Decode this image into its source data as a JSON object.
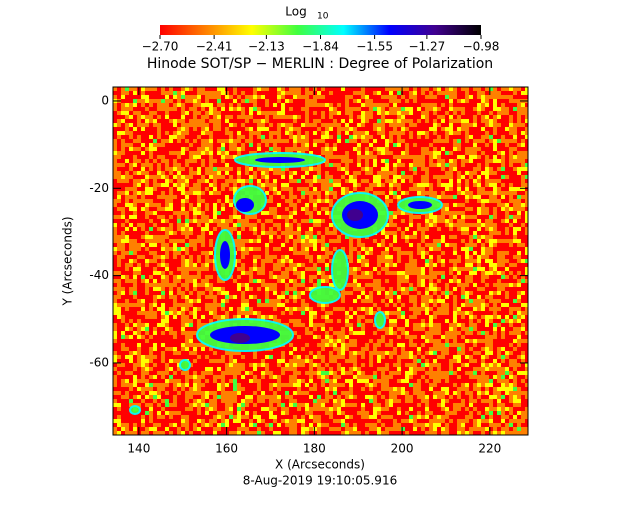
{
  "chart_data": {
    "type": "heatmap",
    "title": "Hinode SOT/SP − MERLIN : Degree of Polarization",
    "xlabel": "X (Arcseconds)",
    "ylabel": "Y (Arcseconds)",
    "footer": "8-Aug-2019 19:10:05.916",
    "xlim": [
      134.1,
      228.7
    ],
    "xticks": [
      140,
      160,
      180,
      200,
      220
    ],
    "ylim": [
      -76.5,
      3.2
    ],
    "yticks": [
      -60,
      -40,
      -20,
      0
    ],
    "colorbar": {
      "label": "Log",
      "label_sub": "10",
      "lim": [
        -2.7,
        -0.98
      ],
      "ticks": [
        {
          "value": -2.7,
          "label": "−2.70"
        },
        {
          "value": -2.41,
          "label": "−2.41"
        },
        {
          "value": -2.13,
          "label": "−2.13"
        },
        {
          "value": -1.84,
          "label": "−1.84"
        },
        {
          "value": -1.55,
          "label": "−1.55"
        },
        {
          "value": -1.27,
          "label": "−1.27"
        },
        {
          "value": -0.98,
          "label": "−0.98"
        }
      ],
      "colors": [
        "#ff0000",
        "#ff8000",
        "#ffff00",
        "#40ff40",
        "#00ffff",
        "#0000ff",
        "#40008f",
        "#000000"
      ]
    }
  }
}
